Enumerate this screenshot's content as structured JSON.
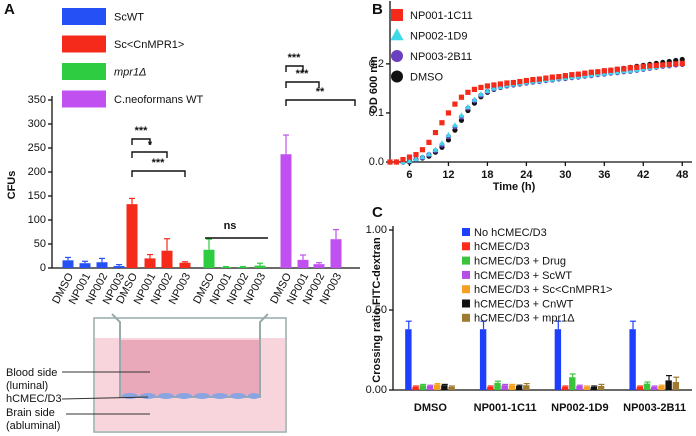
{
  "chart_data": [
    {
      "panel": "A",
      "type": "bar",
      "y_label": "CFUs",
      "categories": [
        "DMSO",
        "NP001",
        "NP002",
        "NP003",
        "DMSO",
        "NP001",
        "NP002",
        "NP003",
        "DMSO",
        "NP001",
        "NP002",
        "NP003",
        "DMSO",
        "NP001",
        "NP002",
        "NP003"
      ],
      "ylim": [
        0,
        350
      ],
      "yticks": [
        0,
        50,
        100,
        150,
        200,
        250,
        300,
        350
      ],
      "series": [
        {
          "name": "ScWT",
          "color": "#2450f5",
          "values": [
            16,
            10,
            12,
            4,
            null,
            null,
            null,
            null,
            null,
            null,
            null,
            null,
            null,
            null,
            null,
            null
          ],
          "errors": [
            6,
            4,
            8,
            3,
            null,
            null,
            null,
            null,
            null,
            null,
            null,
            null,
            null,
            null,
            null,
            null
          ]
        },
        {
          "name": "Sc<CnMPR1>",
          "color": "#f52a1a",
          "values": [
            null,
            null,
            null,
            null,
            133,
            20,
            36,
            11,
            null,
            null,
            null,
            null,
            null,
            null,
            null,
            null
          ],
          "errors": [
            null,
            null,
            null,
            null,
            12,
            8,
            25,
            2,
            null,
            null,
            null,
            null,
            null,
            null,
            null,
            null
          ]
        },
        {
          "name": "mpr1Δ",
          "color": "#2ecc40",
          "values": [
            null,
            null,
            null,
            null,
            null,
            null,
            null,
            null,
            38,
            2,
            2,
            5,
            null,
            null,
            null,
            null
          ],
          "errors": [
            null,
            null,
            null,
            null,
            null,
            null,
            null,
            null,
            22,
            1,
            1,
            5,
            null,
            null,
            null,
            null
          ]
        },
        {
          "name": "C.neoformans WT",
          "color": "#c050f0",
          "values": [
            null,
            null,
            null,
            null,
            null,
            null,
            null,
            null,
            null,
            null,
            null,
            null,
            237,
            17,
            8,
            60
          ],
          "errors": [
            null,
            null,
            null,
            null,
            null,
            null,
            null,
            null,
            null,
            null,
            null,
            null,
            40,
            10,
            3,
            20
          ]
        }
      ],
      "annotations": [
        "***",
        "*",
        "***",
        "ns",
        "***",
        "***",
        "**"
      ]
    },
    {
      "panel": "B",
      "type": "scatter",
      "x_label": "Time (h)",
      "y_label": "OD 600 nm",
      "x": [
        3,
        4,
        5,
        6,
        7,
        8,
        9,
        10,
        11,
        12,
        13,
        14,
        15,
        16,
        17,
        18,
        19,
        20,
        21,
        22,
        23,
        24,
        25,
        26,
        27,
        28,
        29,
        30,
        31,
        32,
        33,
        34,
        35,
        36,
        37,
        38,
        39,
        40,
        41,
        42,
        43,
        44,
        45,
        46,
        47,
        48
      ],
      "xlim": [
        3,
        49.5
      ],
      "xticks": [
        6,
        12,
        18,
        24,
        30,
        36,
        42,
        48
      ],
      "ylim": [
        0,
        0.32
      ],
      "yticks": [
        {
          "value": 0,
          "label": "0.0"
        },
        0.1,
        0.2
      ],
      "series": [
        {
          "name": "NP001-1C11",
          "color": "#f52a1a",
          "marker": "square",
          "values": [
            0,
            0,
            0.005,
            0.01,
            0.015,
            0.025,
            0.04,
            0.06,
            0.08,
            0.1,
            0.118,
            0.132,
            0.142,
            0.148,
            0.152,
            0.155,
            0.157,
            0.159,
            0.161,
            0.162,
            0.164,
            0.166,
            0.168,
            0.169,
            0.171,
            0.173,
            0.174,
            0.176,
            0.178,
            0.179,
            0.181,
            0.183,
            0.184,
            0.186,
            0.187,
            0.189,
            0.19,
            0.192,
            0.193,
            0.195,
            0.196,
            0.197,
            0.198,
            0.199,
            0.2,
            0.201
          ]
        },
        {
          "name": "NP002-1D9",
          "color": "#3fd8e8",
          "marker": "triangle",
          "values": [
            0,
            0,
            0,
            0.002,
            0.006,
            0.01,
            0.016,
            0.025,
            0.038,
            0.055,
            0.075,
            0.095,
            0.112,
            0.127,
            0.138,
            0.145,
            0.15,
            0.153,
            0.156,
            0.158,
            0.16,
            0.162,
            0.164,
            0.165,
            0.167,
            0.168,
            0.17,
            0.171,
            0.173,
            0.174,
            0.176,
            0.177,
            0.179,
            0.18,
            0.182,
            0.183,
            0.185,
            0.186,
            0.188,
            0.19,
            0.192,
            0.194,
            0.196,
            0.197,
            0.199,
            0.2
          ]
        },
        {
          "name": "NP003-2B11",
          "color": "#6a3fc0",
          "marker": "circle",
          "values": [
            0,
            0,
            0,
            0.002,
            0.005,
            0.009,
            0.015,
            0.023,
            0.035,
            0.052,
            0.072,
            0.092,
            0.11,
            0.125,
            0.136,
            0.144,
            0.149,
            0.152,
            0.155,
            0.157,
            0.159,
            0.161,
            0.163,
            0.164,
            0.166,
            0.167,
            0.169,
            0.17,
            0.172,
            0.173,
            0.175,
            0.176,
            0.178,
            0.179,
            0.181,
            0.182,
            0.184,
            0.185,
            0.187,
            0.189,
            0.191,
            0.193,
            0.195,
            0.196,
            0.198,
            0.199
          ]
        },
        {
          "name": "DMSO",
          "color": "#111111",
          "marker": "circle",
          "values": [
            0,
            0,
            0,
            0,
            0.005,
            0.008,
            0.012,
            0.02,
            0.03,
            0.045,
            0.065,
            0.085,
            0.105,
            0.12,
            0.133,
            0.142,
            0.148,
            0.152,
            0.155,
            0.157,
            0.159,
            0.161,
            0.163,
            0.165,
            0.167,
            0.169,
            0.171,
            0.173,
            0.175,
            0.177,
            0.179,
            0.181,
            0.183,
            0.185,
            0.187,
            0.189,
            0.191,
            0.193,
            0.195,
            0.197,
            0.199,
            0.201,
            0.203,
            0.205,
            0.207,
            0.209
          ]
        }
      ]
    },
    {
      "panel": "C",
      "type": "bar",
      "y_label": "Crossing ratio FITC-dextran",
      "categories": [
        "DMSO",
        "NP001-1C11",
        "NP002-1D9",
        "NP003-2B11"
      ],
      "ylim": [
        0,
        1
      ],
      "yticks": [
        {
          "value": 0,
          "label": "0.00"
        },
        {
          "value": 0.5,
          "label": "0.50"
        },
        {
          "value": 1,
          "label": "1.00"
        }
      ],
      "series": [
        {
          "name": "No hCMEC/D3",
          "color": "#1f3fff",
          "values": [
            0.38,
            0.38,
            0.38,
            0.38
          ],
          "errors": [
            0.05,
            0.05,
            0.05,
            0.05
          ]
        },
        {
          "name": "hCMEC/D3",
          "color": "#ff2a1a",
          "values": [
            0.02,
            0.02,
            0.02,
            0.02
          ],
          "errors": [
            0.005,
            0.005,
            0.005,
            0.005
          ]
        },
        {
          "name": "hCMEC/D3 + Drug",
          "color": "#3bc43b",
          "values": [
            0.03,
            0.045,
            0.08,
            0.04
          ],
          "errors": [
            0.005,
            0.01,
            0.02,
            0.01
          ]
        },
        {
          "name": "hCMEC/D3 + ScWT",
          "color": "#b44ce6",
          "values": [
            0.025,
            0.03,
            0.025,
            0.02
          ],
          "errors": [
            0.005,
            0.005,
            0.005,
            0.005
          ]
        },
        {
          "name": "hCMEC/D3 + Sc<CnMPR1>",
          "color": "#f5a020",
          "values": [
            0.035,
            0.03,
            0.02,
            0.025
          ],
          "errors": [
            0.005,
            0.005,
            0.005,
            0.005
          ]
        },
        {
          "name": "hCMEC/D3 + CnWT",
          "color": "#111111",
          "values": [
            0.03,
            0.025,
            0.02,
            0.06
          ],
          "errors": [
            0.005,
            0.005,
            0.005,
            0.03
          ]
        },
        {
          "name": "hCMEC/D3 + mpr1Δ",
          "color": "#a07a30",
          "values": [
            0.02,
            0.03,
            0.025,
            0.05
          ],
          "errors": [
            0.005,
            0.01,
            0.01,
            0.03
          ]
        }
      ]
    }
  ],
  "diagram": {
    "blood_side": [
      "Blood side",
      "(luminal)"
    ],
    "cell_layer": "hCMEC/D3",
    "brain_side": [
      "Brain side",
      "(abluminal)"
    ]
  }
}
